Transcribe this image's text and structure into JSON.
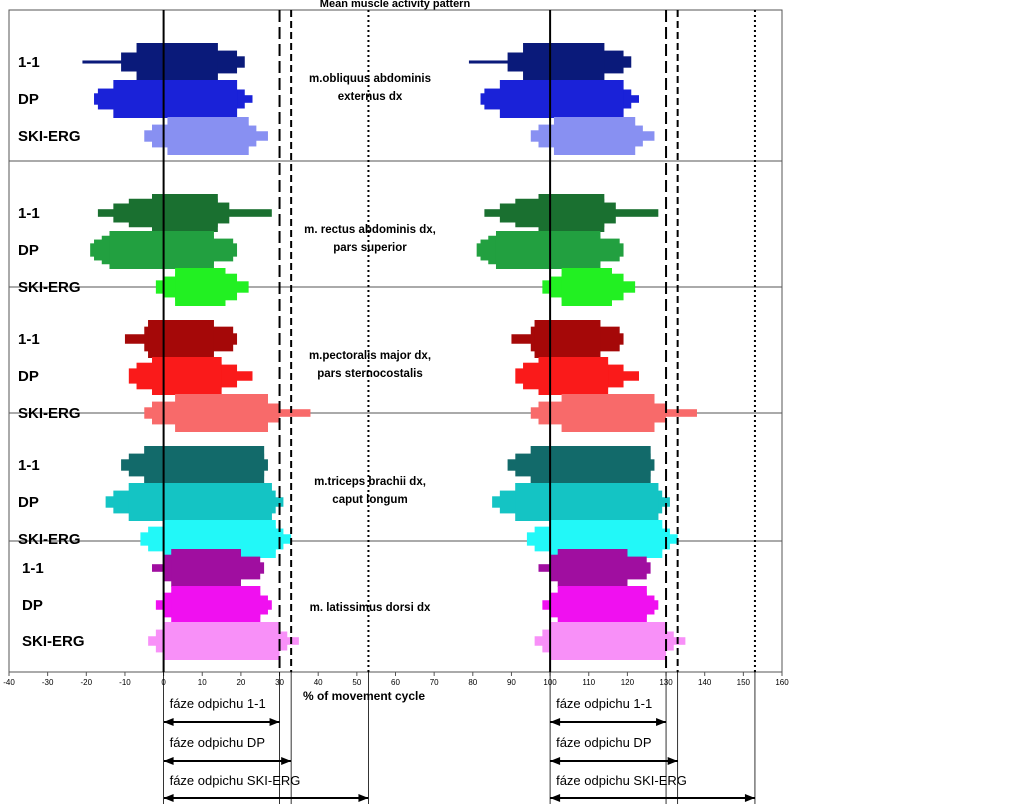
{
  "chart_data": {
    "type": "bar",
    "subtype": "stepped-activity-envelope",
    "title": "Mean muscle activity pattern",
    "xlabel": "% of movement cycle",
    "xlim": [
      -40,
      160
    ],
    "xticks": [
      -40,
      -30,
      -20,
      -10,
      0,
      10,
      20,
      30,
      40,
      50,
      60,
      70,
      80,
      90,
      100,
      110,
      120,
      130,
      140,
      150,
      160
    ],
    "cycle_start_lines": [
      0,
      100
    ],
    "phase_end_lines": [
      {
        "label": "1-1",
        "values": [
          30,
          130
        ],
        "style": "long-dash"
      },
      {
        "label": "DP",
        "values": [
          33,
          133
        ],
        "style": "dash"
      },
      {
        "label": "SKI-ERG",
        "values": [
          53,
          153
        ],
        "style": "dot"
      }
    ],
    "panels": [
      {
        "muscle_line1": "m.obliquus abdominis",
        "muscle_line2": "externus dx",
        "rows": [
          {
            "label": "1-1",
            "color": "#0a1a7a",
            "left": [
              [
                -21,
                0.08
              ],
              [
                -11,
                0.5
              ],
              [
                -7,
                1.0
              ],
              [
                0,
                1.0
              ]
            ],
            "right": [
              [
                14,
                1.0
              ],
              [
                19,
                0.6
              ],
              [
                21,
                0.3
              ]
            ]
          },
          {
            "label": "DP",
            "color": "#1a22d8",
            "left": [
              [
                -18,
                0.3
              ],
              [
                -17,
                0.55
              ],
              [
                -13,
                1.0
              ],
              [
                0,
                1.0
              ]
            ],
            "right": [
              [
                19,
                1.0
              ],
              [
                21,
                0.5
              ],
              [
                23,
                0.2
              ]
            ]
          },
          {
            "label": "SKI-ERG",
            "color": "#8890f2",
            "left": [
              [
                -5,
                0.3
              ],
              [
                -3,
                0.6
              ],
              [
                1,
                1.0
              ]
            ],
            "right": [
              [
                22,
                1.0
              ],
              [
                24,
                0.55
              ],
              [
                27,
                0.25
              ]
            ]
          }
        ]
      },
      {
        "muscle_line1": "m. rectus abdominis dx,",
        "muscle_line2": "pars superior",
        "rows": [
          {
            "label": "1-1",
            "color": "#1a7030",
            "left": [
              [
                -17,
                0.2
              ],
              [
                -13,
                0.5
              ],
              [
                -9,
                0.75
              ],
              [
                -3,
                1.0
              ]
            ],
            "right": [
              [
                14,
                1.0
              ],
              [
                17,
                0.55
              ],
              [
                28,
                0.2
              ]
            ]
          },
          {
            "label": "DP",
            "color": "#22a040",
            "left": [
              [
                -19,
                0.35
              ],
              [
                -18,
                0.55
              ],
              [
                -16,
                0.75
              ],
              [
                -14,
                1.0
              ]
            ],
            "right": [
              [
                13,
                1.0
              ],
              [
                18,
                0.6
              ],
              [
                19,
                0.35
              ]
            ]
          },
          {
            "label": "SKI-ERG",
            "color": "#22f022",
            "left": [
              [
                -2,
                0.35
              ],
              [
                0,
                0.55
              ],
              [
                3,
                1.0
              ]
            ],
            "right": [
              [
                16,
                1.0
              ],
              [
                19,
                0.7
              ],
              [
                22,
                0.3
              ]
            ]
          }
        ]
      },
      {
        "muscle_line1": "m.pectoralis major dx,",
        "muscle_line2": "pars sternocostalis",
        "rows": [
          {
            "label": "1-1",
            "color": "#a50808",
            "left": [
              [
                -10,
                0.25
              ],
              [
                -5,
                0.65
              ],
              [
                -4,
                1.0
              ]
            ],
            "right": [
              [
                13,
                1.0
              ],
              [
                18,
                0.65
              ],
              [
                19,
                0.3
              ]
            ]
          },
          {
            "label": "DP",
            "color": "#fa1a1a",
            "left": [
              [
                -9,
                0.4
              ],
              [
                -7,
                0.7
              ],
              [
                -3,
                1.0
              ]
            ],
            "right": [
              [
                15,
                1.0
              ],
              [
                19,
                0.6
              ],
              [
                23,
                0.25
              ]
            ]
          },
          {
            "label": "SKI-ERG",
            "color": "#f86a6a",
            "left": [
              [
                -5,
                0.3
              ],
              [
                -3,
                0.6
              ],
              [
                3,
                1.0
              ]
            ],
            "right": [
              [
                27,
                1.0
              ],
              [
                30,
                0.5
              ],
              [
                38,
                0.2
              ]
            ]
          }
        ]
      },
      {
        "muscle_line1": "m.triceps brachii dx,",
        "muscle_line2": "caput longum",
        "rows": [
          {
            "label": "1-1",
            "color": "#126a6a",
            "left": [
              [
                -11,
                0.3
              ],
              [
                -9,
                0.6
              ],
              [
                -5,
                1.0
              ]
            ],
            "right": [
              [
                26,
                1.0
              ],
              [
                27,
                0.3
              ]
            ]
          },
          {
            "label": "DP",
            "color": "#14c4c4",
            "left": [
              [
                -15,
                0.3
              ],
              [
                -13,
                0.6
              ],
              [
                -9,
                1.0
              ]
            ],
            "right": [
              [
                28,
                1.0
              ],
              [
                29,
                0.6
              ],
              [
                31,
                0.25
              ]
            ]
          },
          {
            "label": "SKI-ERG",
            "color": "#22f8f8",
            "left": [
              [
                -6,
                0.35
              ],
              [
                -4,
                0.65
              ],
              [
                0,
                1.0
              ]
            ],
            "right": [
              [
                29,
                1.0
              ],
              [
                31,
                0.55
              ],
              [
                33,
                0.25
              ]
            ]
          }
        ]
      },
      {
        "muscle_line1": "m. latissimus dorsi dx",
        "muscle_line2": "",
        "rows": [
          {
            "label": "1-1",
            "color": "#a00ea0",
            "left": [
              [
                -3,
                0.2
              ],
              [
                0,
                0.7
              ],
              [
                2,
                1.0
              ]
            ],
            "right": [
              [
                20,
                1.0
              ],
              [
                25,
                0.6
              ],
              [
                26,
                0.3
              ]
            ]
          },
          {
            "label": "DP",
            "color": "#f010f0",
            "left": [
              [
                -2,
                0.25
              ],
              [
                0,
                0.65
              ],
              [
                2,
                1.0
              ]
            ],
            "right": [
              [
                25,
                1.0
              ],
              [
                27,
                0.5
              ],
              [
                28,
                0.25
              ]
            ]
          },
          {
            "label": "SKI-ERG",
            "color": "#f890f8",
            "left": [
              [
                -4,
                0.25
              ],
              [
                -2,
                0.6
              ],
              [
                0,
                1.0
              ]
            ],
            "right": [
              [
                30,
                1.0
              ],
              [
                32,
                0.5
              ],
              [
                35,
                0.2
              ]
            ]
          }
        ]
      }
    ],
    "phase_arrows": [
      {
        "label": "fáze odpichu 1-1",
        "from": 0,
        "to": 30
      },
      {
        "label": "fáze odpichu  DP",
        "from": 0,
        "to": 33
      },
      {
        "label": "fáze odpichu SKI-ERG",
        "from": 0,
        "to": 53
      },
      {
        "label": "fáze odpichu 1-1",
        "from": 100,
        "to": 130
      },
      {
        "label": "fáze odpichu  DP",
        "from": 100,
        "to": 133
      },
      {
        "label": "fáze odpichu SKI-ERG",
        "from": 100,
        "to": 153
      }
    ]
  }
}
